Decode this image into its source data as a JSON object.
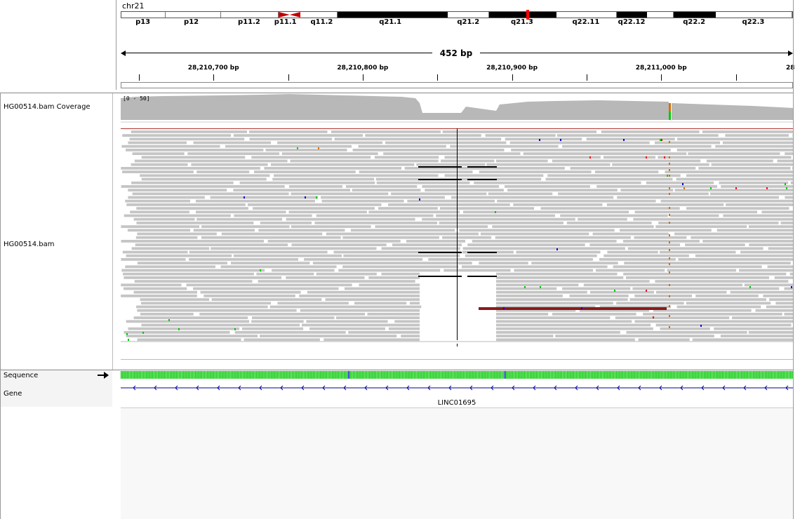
{
  "ideogram": {
    "chromosome": "chr21",
    "bands": [
      {
        "name": "p13",
        "start": 0.0,
        "end": 0.066,
        "stain": "gneg"
      },
      {
        "name": "p12",
        "start": 0.066,
        "end": 0.149,
        "stain": "gneg"
      },
      {
        "name": "p11.2",
        "start": 0.149,
        "end": 0.234,
        "stain": "gneg"
      },
      {
        "name": "p11.1",
        "start": 0.234,
        "end": 0.267,
        "stain": "acen-p"
      },
      {
        "name": "q11.2",
        "start": 0.267,
        "end": 0.322,
        "stain": "gneg"
      },
      {
        "name": "q21.1",
        "start": 0.322,
        "end": 0.486,
        "stain": "gpos100"
      },
      {
        "name": "q21.2",
        "start": 0.486,
        "end": 0.548,
        "stain": "gneg"
      },
      {
        "name": "q21.3",
        "start": 0.548,
        "end": 0.649,
        "stain": "gpos100"
      },
      {
        "name": "q22.11",
        "start": 0.649,
        "end": 0.739,
        "stain": "gneg"
      },
      {
        "name": "q22.12",
        "start": 0.739,
        "end": 0.783,
        "stain": "gpos100"
      },
      {
        "name": "q22.2",
        "start": 0.783,
        "end": 0.823,
        "stain": "gneg"
      },
      {
        "name": "q22.2",
        "start": 0.823,
        "end": 0.886,
        "stain": "gpos100"
      },
      {
        "name": "q22.3",
        "start": 0.886,
        "end": 1.0,
        "stain": "gneg"
      }
    ],
    "band_labels": [
      {
        "text": "p13",
        "pos": 0.033
      },
      {
        "text": "p12",
        "pos": 0.105
      },
      {
        "text": "p11.2",
        "pos": 0.191
      },
      {
        "text": "p11.1",
        "pos": 0.245
      },
      {
        "text": "q11.2",
        "pos": 0.299
      },
      {
        "text": "q21.1",
        "pos": 0.401
      },
      {
        "text": "q21.2",
        "pos": 0.517
      },
      {
        "text": "q21.3",
        "pos": 0.597
      },
      {
        "text": "q22.11",
        "pos": 0.692
      },
      {
        "text": "q22.12",
        "pos": 0.76
      },
      {
        "text": "q22.2",
        "pos": 0.853
      },
      {
        "text": "q22.3",
        "pos": 0.941
      }
    ],
    "current_view_pos": 0.603
  },
  "ruler": {
    "span_label": "452 bp",
    "ticks": [
      {
        "label": "28,210,700 bp",
        "pos": 0.138
      },
      {
        "label": "28,210,800 bp",
        "pos": 0.36
      },
      {
        "label": "28,210,900 bp",
        "pos": 0.582
      },
      {
        "label": "28,211,000 bp",
        "pos": 0.804
      },
      {
        "label": "28",
        "pos": 1.0
      }
    ],
    "minor_tick_pos": [
      0.027,
      0.249,
      0.471,
      0.693,
      0.915
    ]
  },
  "tracks": {
    "coverage_name": "HG00514.bam Coverage",
    "coverage_scale": "[0 - 50]",
    "alignment_name": "HG00514.bam",
    "sequence_name": "Sequence",
    "gene_name": "Gene",
    "gene_label": "LINC01695",
    "sequence_strand_icon": "right-arrow-icon"
  },
  "colors": {
    "read_gray": "#c5c5c5",
    "coverage_gray": "#b0b0b0",
    "deletion_line": "#000000",
    "discordant_read": "#8b1a1a",
    "base_A": "#00c800",
    "base_C": "#0000e6",
    "base_G": "#d17105",
    "base_T": "#ff0000",
    "gene_blue": "#000096",
    "centromere_red": "#c00000",
    "view_marker_red": "#ff0000"
  }
}
